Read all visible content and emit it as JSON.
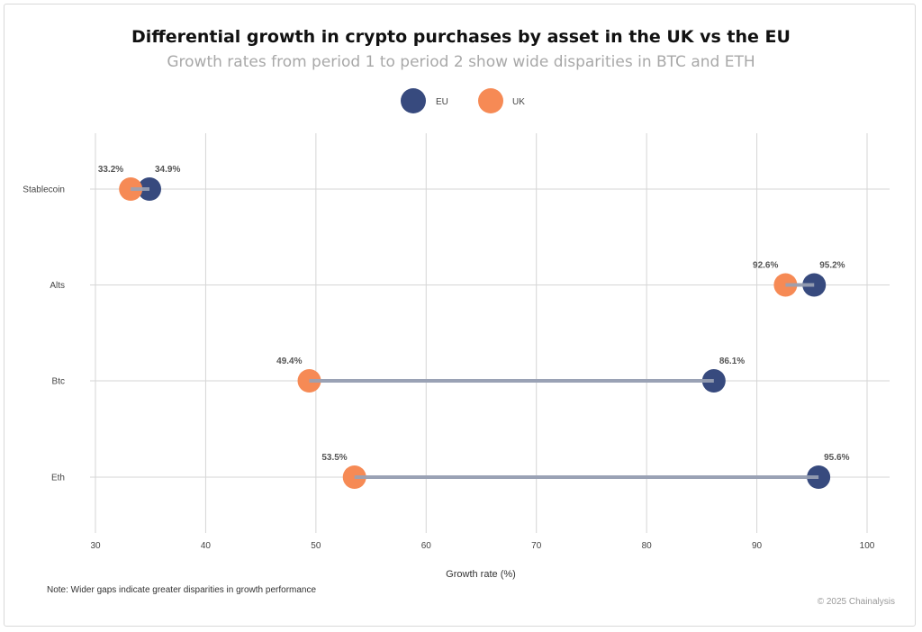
{
  "title": "Differential growth in crypto purchases by asset in the UK vs the EU",
  "subtitle": "Growth rates from period 1 to period 2 show wide disparities in BTC and ETH",
  "note": "Note: Wider gaps indicate greater disparities in growth performance",
  "copyright": "© 2025 Chainalysis",
  "colors": {
    "eu": "#374a7e",
    "uk": "#f68a55",
    "connector": "#9aa2b5",
    "grid": "#d6d6d6"
  },
  "chart_data": {
    "type": "scatter",
    "subtype": "dumbbell",
    "xlabel": "Growth rate (%)",
    "ylabel": "",
    "xlim": [
      30,
      100
    ],
    "xticks": [
      30,
      40,
      50,
      60,
      70,
      80,
      90,
      100
    ],
    "categories": [
      "Stablecoin",
      "Alts",
      "Btc",
      "Eth"
    ],
    "grid": true,
    "legend_position": "top-center",
    "series": [
      {
        "name": "EU",
        "color": "#374a7e",
        "values": [
          34.9,
          95.2,
          86.1,
          95.6
        ],
        "labels": [
          "34.9%",
          "95.2%",
          "86.1%",
          "95.6%"
        ]
      },
      {
        "name": "UK",
        "color": "#f68a55",
        "values": [
          33.2,
          92.6,
          49.4,
          53.5
        ],
        "labels": [
          "33.2%",
          "92.6%",
          "49.4%",
          "53.5%"
        ]
      }
    ]
  }
}
